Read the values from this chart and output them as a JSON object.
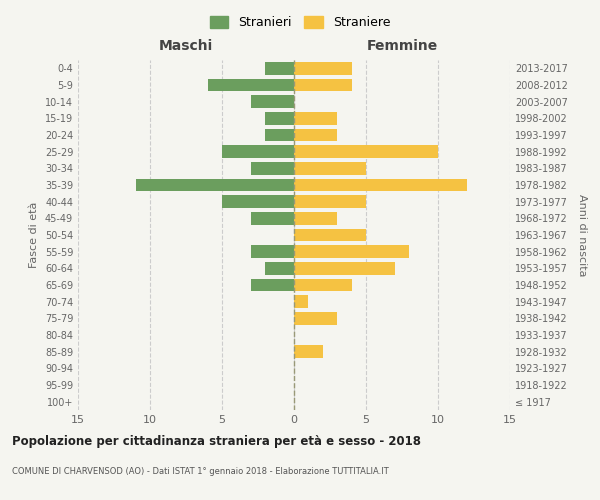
{
  "age_groups": [
    "100+",
    "95-99",
    "90-94",
    "85-89",
    "80-84",
    "75-79",
    "70-74",
    "65-69",
    "60-64",
    "55-59",
    "50-54",
    "45-49",
    "40-44",
    "35-39",
    "30-34",
    "25-29",
    "20-24",
    "15-19",
    "10-14",
    "5-9",
    "0-4"
  ],
  "birth_years": [
    "≤ 1917",
    "1918-1922",
    "1923-1927",
    "1928-1932",
    "1933-1937",
    "1938-1942",
    "1943-1947",
    "1948-1952",
    "1953-1957",
    "1958-1962",
    "1963-1967",
    "1968-1972",
    "1973-1977",
    "1978-1982",
    "1983-1987",
    "1988-1992",
    "1993-1997",
    "1998-2002",
    "2003-2007",
    "2008-2012",
    "2013-2017"
  ],
  "males": [
    0,
    0,
    0,
    0,
    0,
    0,
    0,
    3,
    2,
    3,
    0,
    3,
    5,
    11,
    3,
    5,
    2,
    2,
    3,
    6,
    2
  ],
  "females": [
    0,
    0,
    0,
    2,
    0,
    3,
    1,
    4,
    7,
    8,
    5,
    3,
    5,
    12,
    5,
    10,
    3,
    3,
    0,
    4,
    4
  ],
  "male_color": "#6b9e5e",
  "female_color": "#f5c242",
  "background_color": "#f5f5f0",
  "grid_color": "#cccccc",
  "title": "Popolazione per cittadinanza straniera per età e sesso - 2018",
  "subtitle": "COMUNE DI CHARVENSOD (AO) - Dati ISTAT 1° gennaio 2018 - Elaborazione TUTTITALIA.IT",
  "xlabel_left": "Maschi",
  "xlabel_right": "Femmine",
  "ylabel_left": "Fasce di età",
  "ylabel_right": "Anni di nascita",
  "legend_male": "Stranieri",
  "legend_female": "Straniere",
  "xlim": 15,
  "bar_height": 0.75
}
